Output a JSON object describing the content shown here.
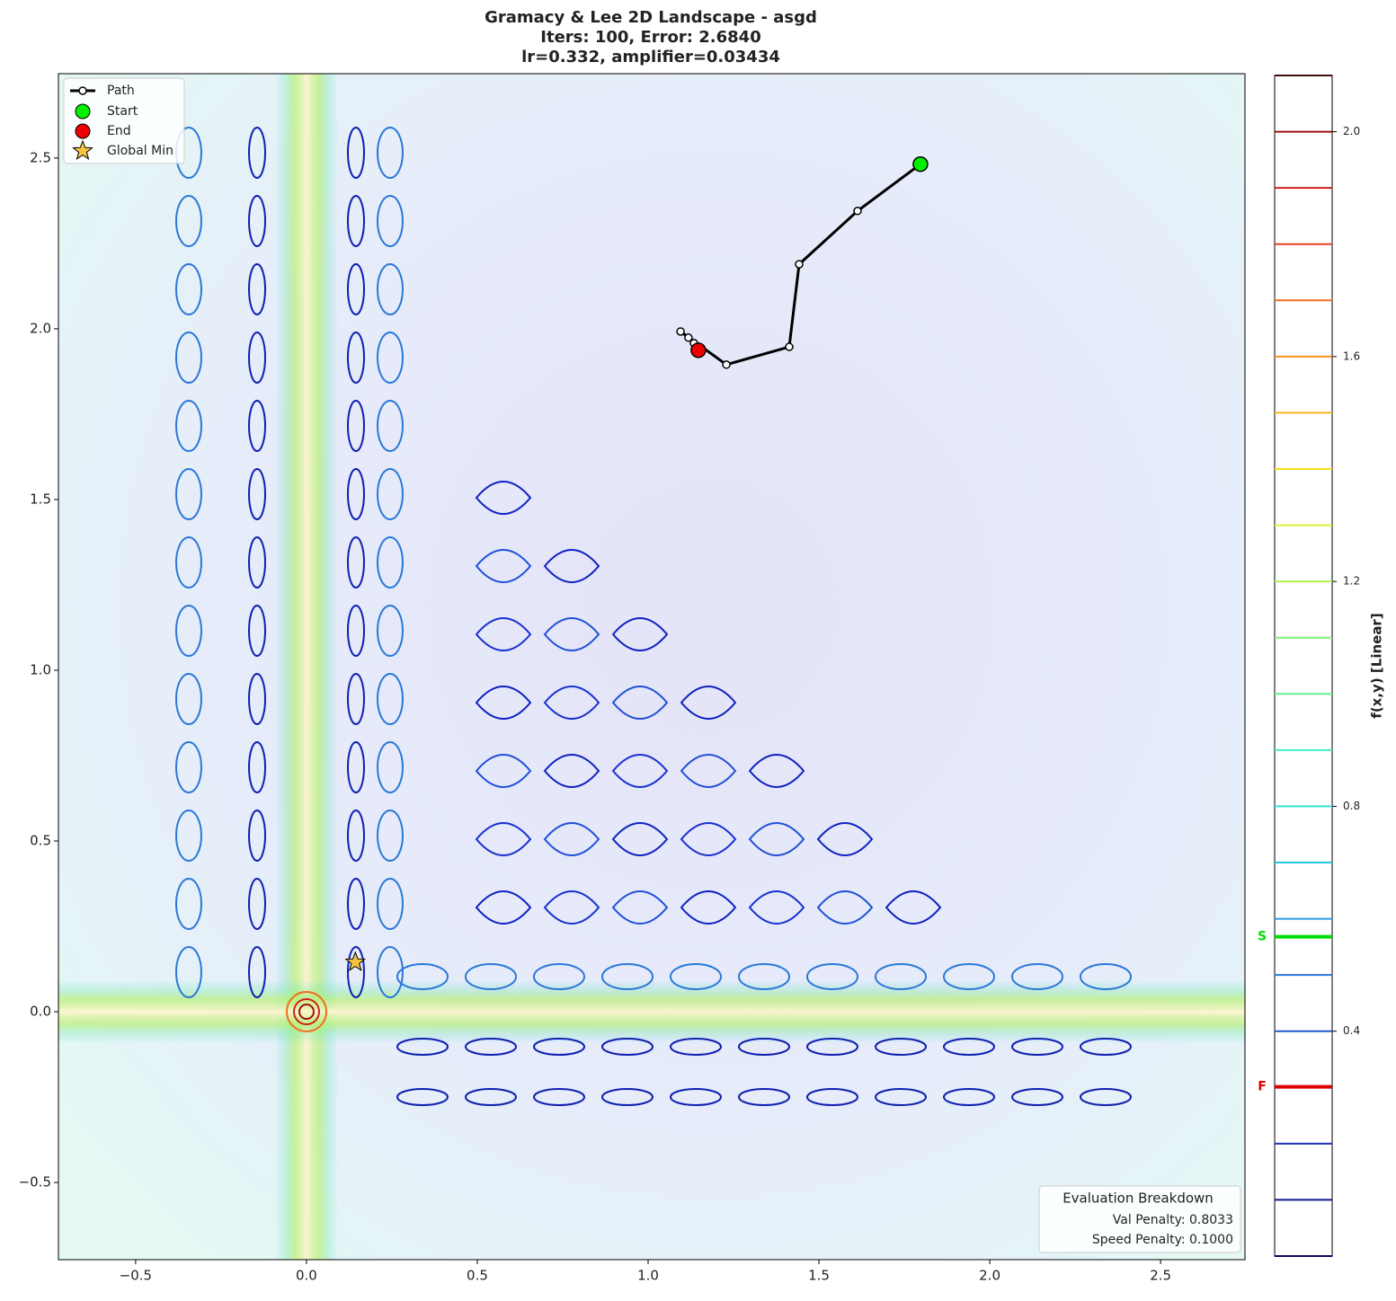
{
  "chart_data": {
    "type": "contour",
    "title": "Gramacy & Lee 2D Landscape - asgd",
    "subtitle": "Iters: 100, Error: 2.6840",
    "subtitle2": "lr=0.332, amplifier=0.03434",
    "xlim": [
      -0.726,
      2.747
    ],
    "ylim": [
      -0.726,
      2.747
    ],
    "xticks": [
      {
        "value": -0.5,
        "label": "−0.5"
      },
      {
        "value": 0,
        "label": "0.0"
      },
      0.5,
      {
        "value": 1,
        "label": "1.0"
      },
      1.5,
      {
        "value": 2,
        "label": "2.0"
      },
      2.5
    ],
    "yticks": [
      {
        "value": -0.5,
        "label": "−0.5"
      },
      {
        "value": 0,
        "label": "0.0"
      },
      0.5,
      {
        "value": 1,
        "label": "1.0"
      },
      1.5,
      {
        "value": 2,
        "label": "2.0"
      },
      2.5
    ],
    "path": {
      "name": "Path",
      "color": "#000000",
      "x": [
        1.797,
        1.613,
        1.442,
        1.413,
        1.229,
        1.095,
        1.118,
        1.134,
        1.147
      ],
      "y": [
        2.482,
        2.345,
        2.189,
        1.947,
        1.895,
        1.992,
        1.974,
        1.958,
        1.937
      ]
    },
    "start": {
      "name": "Start",
      "color": "#00ee00",
      "x": 1.797,
      "y": 2.482
    },
    "end": {
      "name": "End",
      "color": "#ee0000",
      "x": 1.147,
      "y": 1.937
    },
    "global_min": {
      "name": "Global Min",
      "color": "#f5c542",
      "x": 0.143,
      "y": 0.145
    },
    "legend": "upper left",
    "colorbar": {
      "label": "f(x,y) [Linear]",
      "lim": [
        0,
        2.1
      ],
      "ticks": [
        0.4,
        0.8,
        1.2,
        1.6,
        {
          "value": 2,
          "label": "2.0"
        }
      ],
      "levels": [
        0,
        0.1,
        0.2,
        0.3,
        0.4,
        0.5,
        0.6,
        0.7,
        0.8,
        0.9,
        1.0,
        1.1,
        1.2,
        1.3,
        1.4,
        1.5,
        1.6,
        1.7,
        1.8,
        1.9,
        2.0,
        2.1
      ],
      "level_colors": [
        "#0a0a5a",
        "#101a8c",
        "#2030b8",
        "#2a4ad0",
        "#2255cc",
        "#2a78d8",
        "#2aa0e0",
        "#20c8e8",
        "#30e8d8",
        "#40f0c0",
        "#60f090",
        "#80f070",
        "#b0f050",
        "#e0f030",
        "#f8e010",
        "#f8b820",
        "#f89020",
        "#f07020",
        "#e84020",
        "#d02020",
        "#a01010",
        "#401010"
      ],
      "markers": [
        {
          "label": "S",
          "value": 0.568,
          "color": "#00dd00"
        },
        {
          "label": "F",
          "value": 0.301,
          "color": "#dd0000"
        }
      ]
    },
    "evaluation": {
      "title": "Evaluation Breakdown",
      "lines": [
        "Val Penalty: 0.8033",
        "Speed Penalty: 0.1000"
      ]
    }
  }
}
